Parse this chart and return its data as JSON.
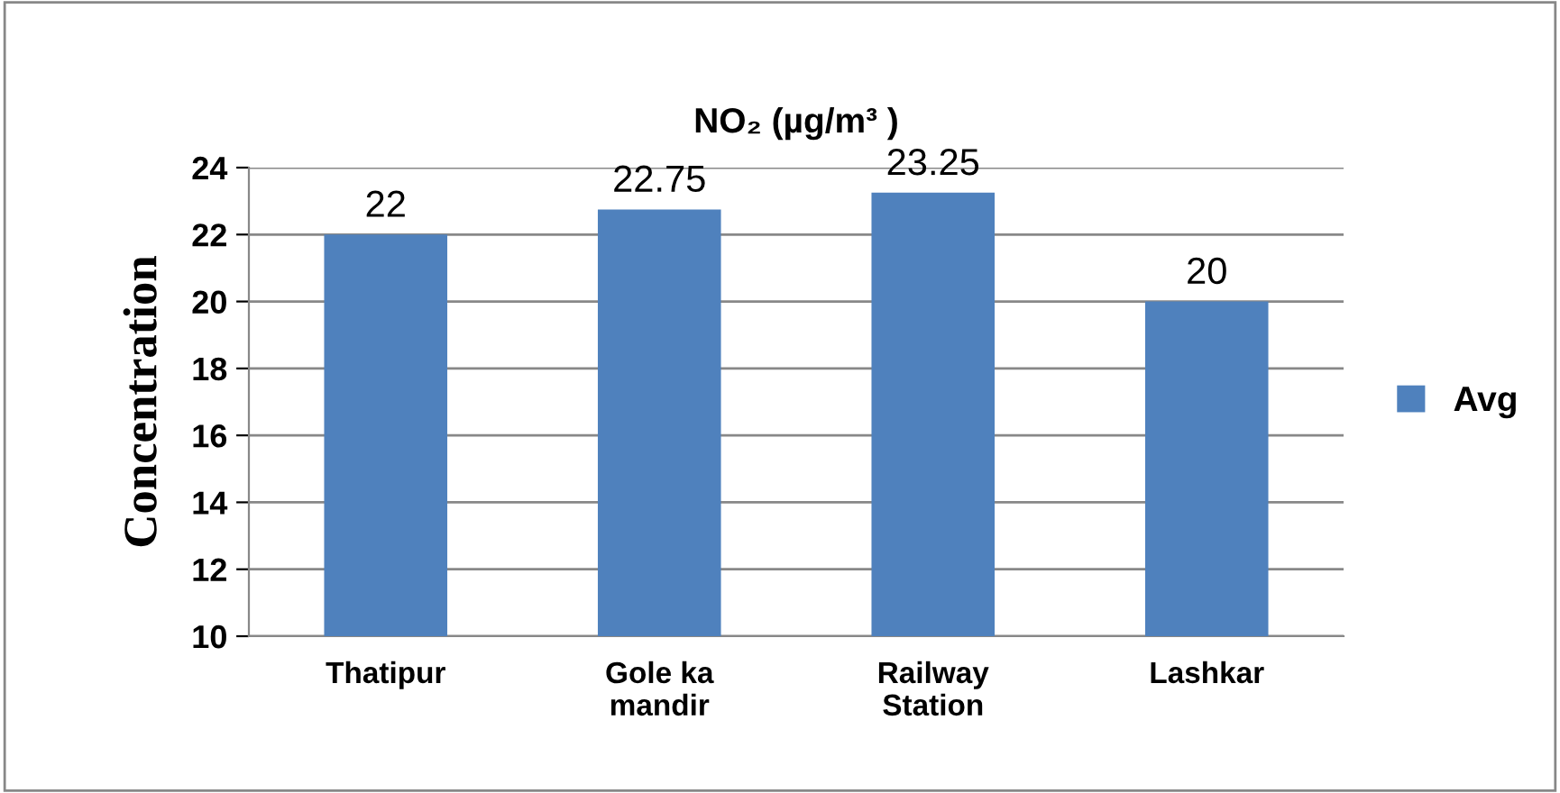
{
  "chart_data": {
    "type": "bar",
    "title": "NO₂ (µg/m³ )",
    "ylabel": "Concentration",
    "categories": [
      "Thatipur",
      "Gole ka\nmandir",
      "Railway\nStation",
      "Lashkar"
    ],
    "series": [
      {
        "name": "Avg",
        "color": "#4f81bd",
        "values": [
          22,
          22.75,
          23.25,
          20
        ]
      }
    ],
    "ylim": [
      10,
      24
    ],
    "yticks": [
      10,
      12,
      14,
      16,
      18,
      20,
      22,
      24
    ],
    "grid": "y",
    "legend": "right",
    "data_labels": true
  }
}
